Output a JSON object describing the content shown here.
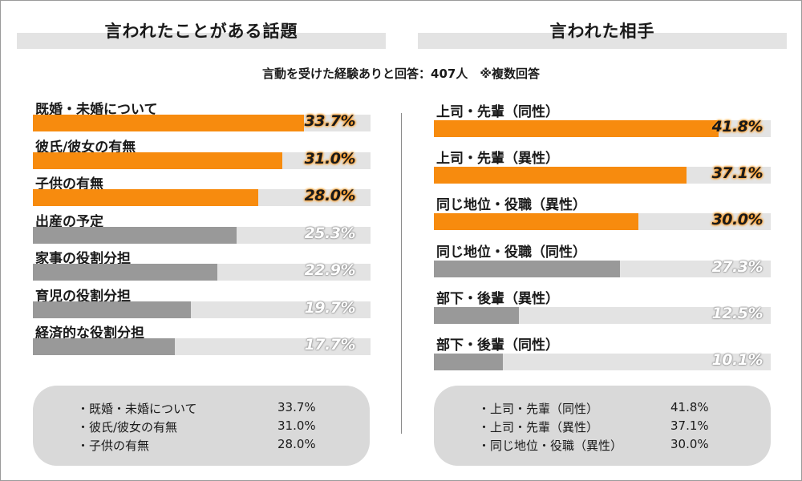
{
  "colors": {
    "highlight": "#f78b0e",
    "normal": "#999999",
    "track": "#e3e3e3"
  },
  "header": {
    "left_title": "言われたことがある話題",
    "right_title": "言われた相手",
    "subtitle": "言動を受けた経験ありと回答：407人　※複数回答"
  },
  "chart_data": [
    {
      "type": "bar",
      "orientation": "horizontal",
      "title": "言われたことがある話題",
      "categories": [
        "既婚・未婚について",
        "彼氏/彼女の有無",
        "子供の有無",
        "出産の予定",
        "家事の役割分担",
        "育児の役割分担",
        "経済的な役割分担"
      ],
      "values": [
        33.7,
        31.0,
        28.0,
        25.3,
        22.9,
        19.7,
        17.7
      ],
      "value_labels": [
        "33.7%",
        "31.0%",
        "28.0%",
        "25.3%",
        "22.9%",
        "19.7%",
        "17.7%"
      ],
      "highlighted": [
        true,
        true,
        true,
        false,
        false,
        false,
        false
      ],
      "xlim": [
        0,
        42
      ]
    },
    {
      "type": "bar",
      "orientation": "horizontal",
      "title": "言われた相手",
      "categories": [
        "上司・先輩（同性）",
        "上司・先輩（異性）",
        "同じ地位・役職（異性）",
        "同じ地位・役職（同性）",
        "部下・後輩（異性）",
        "部下・後輩（同性）"
      ],
      "values": [
        41.8,
        37.1,
        30.0,
        27.3,
        12.5,
        10.1
      ],
      "value_labels": [
        "41.8%",
        "37.1%",
        "30.0%",
        "27.3%",
        "12.5%",
        "10.1%"
      ],
      "highlighted": [
        true,
        true,
        true,
        false,
        false,
        false
      ],
      "xlim": [
        0,
        49.5
      ]
    }
  ],
  "summary": {
    "left": [
      {
        "label": "・既婚・未婚について",
        "value": "33.7%"
      },
      {
        "label": "・彼氏/彼女の有無",
        "value": "31.0%"
      },
      {
        "label": "・子供の有無",
        "value": "28.0%"
      }
    ],
    "right": [
      {
        "label": "・上司・先輩（同性）",
        "value": "41.8%"
      },
      {
        "label": "・上司・先輩（異性）",
        "value": "37.1%"
      },
      {
        "label": "・同じ地位・役職（異性）",
        "value": "30.0%"
      }
    ]
  }
}
